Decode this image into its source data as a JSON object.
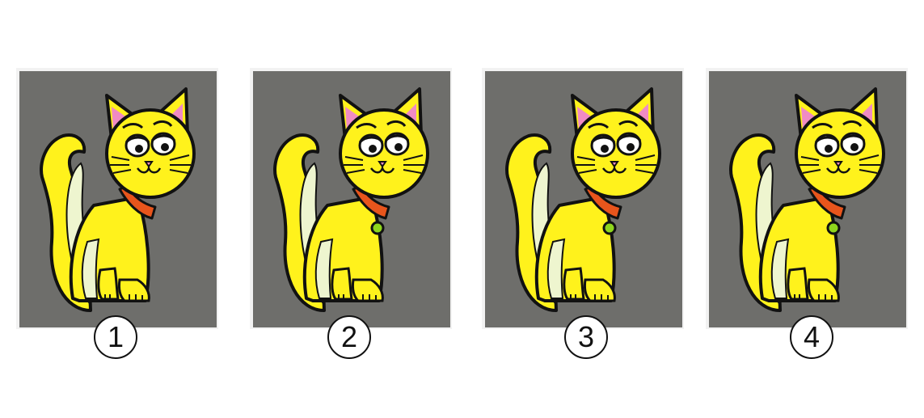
{
  "puzzle": {
    "options": [
      {
        "number": "1",
        "has_tag": false
      },
      {
        "number": "2",
        "has_tag": true
      },
      {
        "number": "3",
        "has_tag": true
      },
      {
        "number": "4",
        "has_tag": true
      }
    ]
  },
  "colors": {
    "background": "#6e6e6b",
    "body": "#fff21c",
    "tail_belly": "#eef5cf",
    "ear_inner": "#f08bc4",
    "collar": "#e8551c",
    "tag": "#8fd61c",
    "outline": "#111111"
  },
  "icons": {
    "cat": "cat-illustration-icon"
  }
}
